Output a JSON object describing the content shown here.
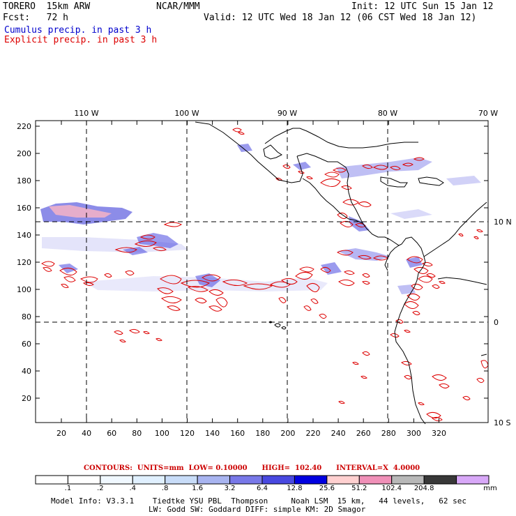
{
  "header": {
    "model": "TORERO  15km ARW",
    "center": "NCAR/MMM",
    "init": "Init: 12 UTC Sun 15 Jan 12",
    "fcst": "Fcst:   72 h",
    "valid": "Valid: 12 UTC Wed 18 Jan 12 (06 CST Wed 18 Jan 12)"
  },
  "legend": {
    "cumulus": "Cumulus precip. in past 3 h",
    "explicit": "Explicit precip. in past 3 h",
    "cumulus_color": "#0000cc",
    "explicit_color": "#dd0000"
  },
  "map": {
    "top_labels": [
      "110 W",
      "100 W",
      "90 W",
      "80 W",
      "70 W"
    ],
    "right_labels": [
      "10 N",
      "0",
      "10 S"
    ],
    "x_ticks": [
      "20",
      "40",
      "60",
      "80",
      "100",
      "120",
      "140",
      "160",
      "180",
      "200",
      "220",
      "240",
      "260",
      "280",
      "300",
      "320"
    ],
    "y_ticks": [
      "220",
      "200",
      "180",
      "160",
      "140",
      "120",
      "100",
      "80",
      "60",
      "40",
      "20"
    ]
  },
  "contours_line": "CONTOURS:  UNITS=mm  LOW= 0.10000      HIGH=  102.40      INTERVAL=X  4.0000",
  "colorbar": {
    "labels": [
      ".1",
      ".2",
      ".4",
      ".8",
      "1.6",
      "3.2",
      "6.4",
      "12.8",
      "25.6",
      "51.2",
      "102.4",
      "204.8"
    ],
    "unit": "mm",
    "colors": [
      "#ffffff",
      "#ffffff",
      "#f0f8ff",
      "#e0f0ff",
      "#c8dcf8",
      "#a8b4f0",
      "#7878e8",
      "#4848e0",
      "#0000e0",
      "#ffd0d0",
      "#f090b8",
      "#b8b8b8",
      "#383838",
      "#d8a8f8"
    ]
  },
  "footer": {
    "line1": "Model Info: V3.3.1    Tiedtke YSU PBL  Thompson     Noah LSM  15 km,   44 levels,   62 sec",
    "line2": "LW: Godd SW: Goddard DIFF: simple KM: 2D Smagor"
  }
}
